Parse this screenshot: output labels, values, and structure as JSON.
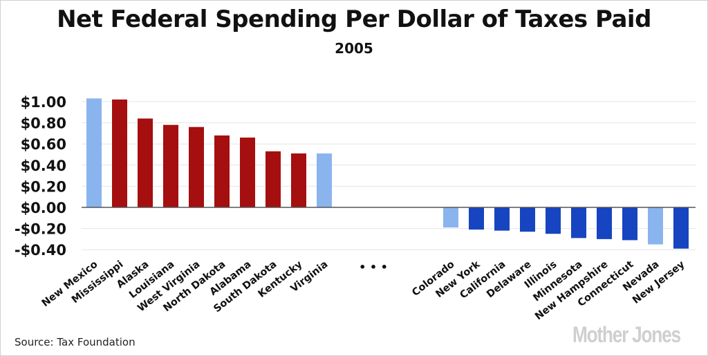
{
  "title": "Net Federal Spending Per Dollar of Taxes Paid",
  "subtitle": "2005",
  "source": "Source: Tax Foundation",
  "logo": "Mother Jones",
  "ellipsis": "• • •",
  "colors": {
    "dark_red": "#a50f0f",
    "light_blue": "#8ab4ee",
    "dark_blue": "#1744c0",
    "grid": "#e4e4e4",
    "zero_line": "#555555"
  },
  "chart_data": {
    "type": "bar",
    "title": "Net Federal Spending Per Dollar of Taxes Paid",
    "subtitle": "2005",
    "xlabel": "",
    "ylabel": "",
    "ylim": [
      -0.4,
      1.0
    ],
    "yticks": [
      1.0,
      0.8,
      0.6,
      0.4,
      0.2,
      0.0,
      -0.2,
      -0.4
    ],
    "ytick_labels": [
      "$1.00",
      "$0.80",
      "$0.60",
      "$0.40",
      "$0.20",
      "$0.00",
      "-$0.20",
      "-$0.40"
    ],
    "grid": true,
    "categories": [
      "New Mexico",
      "Mississippi",
      "Alaska",
      "Louisiana",
      "West Virginia",
      "North Dakota",
      "Alabama",
      "South Dakota",
      "Kentucky",
      "Virginia",
      "Colorado",
      "New York",
      "California",
      "Delaware",
      "Illinois",
      "Minnesota",
      "New Hampshire",
      "Connecticut",
      "Nevada",
      "New Jersey"
    ],
    "values": [
      1.03,
      1.02,
      0.84,
      0.78,
      0.76,
      0.68,
      0.66,
      0.53,
      0.51,
      0.51,
      -0.19,
      -0.21,
      -0.22,
      -0.23,
      -0.25,
      -0.29,
      -0.3,
      -0.31,
      -0.35,
      -0.39
    ],
    "bar_colors": [
      "light_blue",
      "dark_red",
      "dark_red",
      "dark_red",
      "dark_red",
      "dark_red",
      "dark_red",
      "dark_red",
      "dark_red",
      "light_blue",
      "light_blue",
      "dark_blue",
      "dark_blue",
      "dark_blue",
      "dark_blue",
      "dark_blue",
      "dark_blue",
      "dark_blue",
      "light_blue",
      "dark_blue"
    ]
  }
}
